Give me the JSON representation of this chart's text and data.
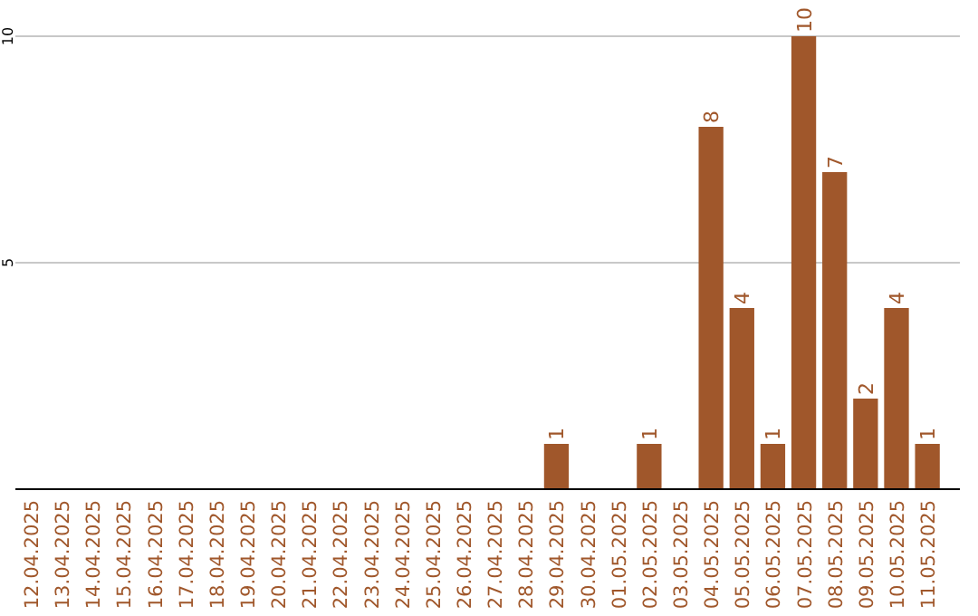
{
  "chart_data": {
    "type": "bar",
    "categories": [
      "12.04.2025",
      "13.04.2025",
      "14.04.2025",
      "15.04.2025",
      "16.04.2025",
      "17.04.2025",
      "18.04.2025",
      "19.04.2025",
      "20.04.2025",
      "21.04.2025",
      "22.04.2025",
      "23.04.2025",
      "24.04.2025",
      "25.04.2025",
      "26.04.2025",
      "27.04.2025",
      "28.04.2025",
      "29.04.2025",
      "30.04.2025",
      "01.05.2025",
      "02.05.2025",
      "03.05.2025",
      "04.05.2025",
      "05.05.2025",
      "06.05.2025",
      "07.05.2025",
      "08.05.2025",
      "09.05.2025",
      "10.05.2025",
      "11.05.2025"
    ],
    "values": [
      0,
      0,
      0,
      0,
      0,
      0,
      0,
      0,
      0,
      0,
      0,
      0,
      0,
      0,
      0,
      0,
      0,
      1,
      0,
      0,
      1,
      0,
      8,
      4,
      1,
      10,
      7,
      2,
      4,
      1
    ],
    "value_labels": [
      null,
      null,
      null,
      null,
      null,
      null,
      null,
      null,
      null,
      null,
      null,
      null,
      null,
      null,
      null,
      null,
      null,
      "1",
      null,
      null,
      "1",
      null,
      "8",
      "4",
      "1",
      "10",
      "7",
      "2",
      "4",
      "1"
    ],
    "color": "#a0572b",
    "ylim": [
      0,
      10
    ],
    "yticks": [
      5,
      10
    ],
    "grid": "y"
  }
}
